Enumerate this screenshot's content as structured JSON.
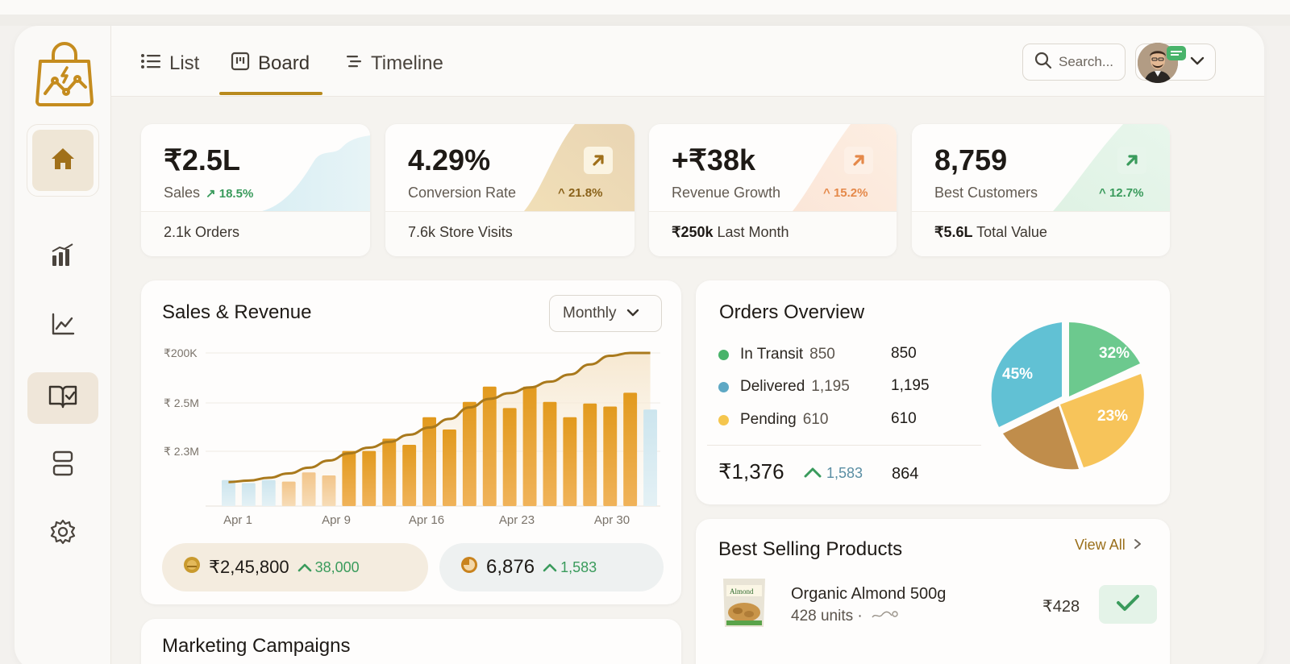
{
  "tabs": [
    {
      "label": "List",
      "icon": "list-icon"
    },
    {
      "label": "Board",
      "icon": "board-icon",
      "active": true
    },
    {
      "label": "Timeline",
      "icon": "timeline-icon"
    }
  ],
  "search": {
    "placeholder": "Search..."
  },
  "stats": [
    {
      "value": "₹2.5L",
      "label": "Sales",
      "change": "18.5%",
      "foot_bold": "",
      "foot": "2.1k Orders",
      "accent": "#3a9b5c"
    },
    {
      "value": "4.29%",
      "label": "Conversion Rate",
      "change": "21.8%",
      "foot_bold": "",
      "foot": "7.6k Store Visits",
      "accent": "#9a6f1a"
    },
    {
      "value": "+₹38k",
      "label": "Revenue Growth",
      "change": "15.2%",
      "foot_bold": "₹250k",
      "foot": "Last Month",
      "accent": "#e5894a"
    },
    {
      "value": "8,759",
      "label": "Best Customers",
      "change": "12.7%",
      "foot_bold": "₹5.6L",
      "foot": "Total Value",
      "accent": "#3a9b5c"
    }
  ],
  "sales_panel": {
    "title": "Sales & Revenue",
    "period": "Monthly",
    "total": "₹2,45,800",
    "total_change": "38,000",
    "orders": "6,876",
    "orders_change": "1,583"
  },
  "chart_data": {
    "type": "bar",
    "title": "Sales & Revenue",
    "y_ticks": [
      "₹200K",
      "₹ 2.5M",
      "₹ 2.3M"
    ],
    "x_ticks": [
      "Apr 1",
      "Apr 9",
      "Apr 16",
      "Apr 23",
      "Apr 30"
    ],
    "bar_heights_rel": [
      0.17,
      0.15,
      0.17,
      0.16,
      0.22,
      0.2,
      0.36,
      0.36,
      0.44,
      0.4,
      0.58,
      0.5,
      0.68,
      0.78,
      0.64,
      0.78,
      0.68,
      0.58,
      0.67,
      0.65,
      0.74,
      0.63
    ],
    "trend_rel": [
      0.1,
      0.11,
      0.13,
      0.16,
      0.2,
      0.25,
      0.3,
      0.34,
      0.38,
      0.43,
      0.48,
      0.54,
      0.62,
      0.68,
      0.72,
      0.76,
      0.8,
      0.85,
      0.92,
      0.98,
      1.0,
      1.0
    ]
  },
  "orders_panel": {
    "title": "Orders Overview",
    "items": [
      {
        "label": "In Transit",
        "num": "850",
        "value": "850",
        "color": "#49b36a"
      },
      {
        "label": "Delivered",
        "num": "1,195",
        "value": "1,195",
        "color": "#5ea8c4"
      },
      {
        "label": "Pending",
        "num": "610",
        "value": "610",
        "color": "#f5c64e"
      }
    ],
    "total": "₹1,376",
    "total_change": "1,583",
    "total_extra": "864",
    "pie": [
      {
        "label": "32%",
        "value": 32,
        "color": "#6cc98e"
      },
      {
        "label": "23%",
        "value": 23,
        "color": "#f7bf52"
      },
      {
        "label": "",
        "value": 0,
        "color": "#b98d4a"
      },
      {
        "label": "45%",
        "value": 45,
        "color": "#5ec3d6"
      }
    ]
  },
  "best_selling": {
    "title": "Best Selling Products",
    "view_all": "View All",
    "products": [
      {
        "name": "Organic Almond 500g",
        "units": "428 units ·",
        "price": "₹428"
      }
    ]
  },
  "marketing": {
    "title": "Marketing Campaigns"
  }
}
